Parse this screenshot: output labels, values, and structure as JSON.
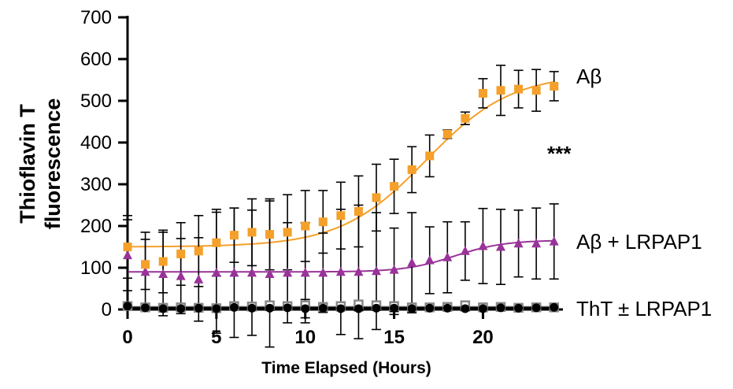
{
  "chart_data": {
    "type": "scatter",
    "title": "",
    "xlabel": "Time Elapsed (Hours)",
    "ylabel_line1": "Thioflavin T",
    "ylabel_line2": "fluorescence",
    "xlim": [
      0,
      24.5
    ],
    "ylim": [
      0,
      700
    ],
    "x_ticks": [
      0,
      5,
      10,
      15,
      20
    ],
    "y_ticks": [
      0,
      100,
      200,
      300,
      400,
      500,
      600,
      700
    ],
    "annotation": "***",
    "series": [
      {
        "name": "Aβ",
        "label": "Aβ",
        "marker": "square",
        "color": "#F5A02A",
        "x": [
          0,
          1,
          2,
          3,
          4,
          5,
          6,
          7,
          8,
          9,
          10,
          11,
          12,
          13,
          14,
          15,
          16,
          17,
          18,
          19,
          20,
          21,
          22,
          23,
          24
        ],
        "y": [
          150,
          108,
          115,
          133,
          140,
          160,
          178,
          185,
          180,
          185,
          200,
          210,
          225,
          235,
          268,
          295,
          335,
          368,
          420,
          458,
          518,
          525,
          528,
          525,
          535
        ],
        "err": [
          75,
          60,
          75,
          75,
          85,
          80,
          65,
          80,
          85,
          90,
          85,
          75,
          80,
          85,
          80,
          65,
          55,
          50,
          10,
          15,
          35,
          60,
          45,
          50,
          35
        ],
        "fit": {
          "bottom": 150,
          "top": 565,
          "mid": 16.8,
          "slope": 2.4
        }
      },
      {
        "name": "Aβ + LRPAP1",
        "label": "Aβ + LRPAP1",
        "marker": "triangle",
        "color": "#993399",
        "x": [
          0,
          1,
          2,
          3,
          4,
          5,
          6,
          7,
          8,
          9,
          10,
          11,
          12,
          13,
          14,
          15,
          16,
          17,
          18,
          19,
          20,
          21,
          22,
          23,
          24
        ],
        "y": [
          130,
          90,
          85,
          80,
          72,
          88,
          88,
          88,
          85,
          88,
          88,
          88,
          90,
          90,
          92,
          95,
          112,
          118,
          125,
          140,
          152,
          150,
          158,
          158,
          163
        ],
        "err": [
          85,
          95,
          100,
          90,
          100,
          145,
          155,
          150,
          175,
          120,
          120,
          95,
          150,
          160,
          140,
          100,
          120,
          80,
          85,
          70,
          90,
          90,
          80,
          85,
          90
        ],
        "fit": {
          "bottom": 90,
          "top": 166,
          "mid": 18.4,
          "slope": 1.4
        }
      },
      {
        "name": "ThT + LRPAP1",
        "label": "",
        "marker": "open-square",
        "color": "#888888",
        "x": [
          0,
          1,
          2,
          3,
          4,
          5,
          6,
          7,
          8,
          9,
          10,
          11,
          12,
          13,
          14,
          15,
          16,
          17,
          18,
          19,
          20,
          21,
          22,
          23,
          24
        ],
        "y": [
          8,
          5,
          4,
          5,
          4,
          3,
          8,
          7,
          10,
          8,
          10,
          6,
          8,
          12,
          10,
          8,
          5,
          5,
          6,
          10,
          5,
          6,
          4,
          5,
          5
        ],
        "err": [
          6,
          5,
          5,
          5,
          5,
          5,
          6,
          6,
          8,
          6,
          8,
          6,
          6,
          8,
          6,
          6,
          5,
          5,
          5,
          6,
          5,
          5,
          5,
          5,
          5
        ],
        "fit": {
          "bottom": 5,
          "top": 5,
          "mid": 12,
          "slope": 1
        }
      },
      {
        "name": "ThT",
        "label": "ThT ± LRPAP1",
        "marker": "circle",
        "color": "#000000",
        "x": [
          0,
          1,
          2,
          3,
          4,
          5,
          6,
          7,
          8,
          9,
          10,
          11,
          12,
          13,
          14,
          15,
          16,
          17,
          18,
          19,
          20,
          21,
          22,
          23,
          24
        ],
        "y": [
          8,
          4,
          2,
          2,
          3,
          2,
          5,
          3,
          3,
          4,
          2,
          3,
          2,
          2,
          3,
          3,
          2,
          3,
          3,
          2,
          2,
          4,
          3,
          4,
          5
        ],
        "err": [
          5,
          5,
          5,
          5,
          5,
          5,
          5,
          5,
          5,
          5,
          22,
          5,
          5,
          5,
          5,
          15,
          5,
          5,
          5,
          5,
          5,
          5,
          5,
          5,
          5
        ],
        "fit": {
          "bottom": 3,
          "top": 3,
          "mid": 12,
          "slope": 1
        }
      }
    ]
  }
}
